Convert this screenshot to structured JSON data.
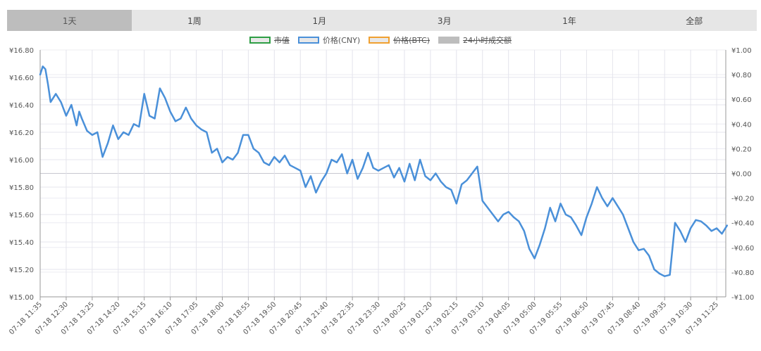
{
  "tabs": [
    {
      "label": "1天",
      "active": true
    },
    {
      "label": "1周",
      "active": false
    },
    {
      "label": "1月",
      "active": false
    },
    {
      "label": "3月",
      "active": false
    },
    {
      "label": "1年",
      "active": false
    },
    {
      "label": "全部",
      "active": false
    }
  ],
  "legend": [
    {
      "label": "市值",
      "color": "#2e9e44",
      "fill": "#e8e8e8",
      "hidden": true
    },
    {
      "label": "价格(CNY)",
      "color": "#4a90d9",
      "fill": "#e8e8e8",
      "hidden": false
    },
    {
      "label": "价格(BTC)",
      "color": "#f0a030",
      "fill": "#e8e8e8",
      "hidden": true
    },
    {
      "label": "24小时成交额",
      "color": "#bdbdbd",
      "fill": "#bdbdbd",
      "hidden": true
    }
  ],
  "chart_data": {
    "type": "line",
    "x_ticks": [
      "07-18 11:35",
      "07-18 12:30",
      "07-18 13:25",
      "07-18 14:20",
      "07-18 15:15",
      "07-18 16:10",
      "07-18 17:05",
      "07-18 18:00",
      "07-18 18:55",
      "07-18 19:50",
      "07-18 20:45",
      "07-18 21:40",
      "07-18 22:35",
      "07-18 23:30",
      "07-19 00:25",
      "07-19 01:20",
      "07-19 02:15",
      "07-19 03:10",
      "07-19 04:05",
      "07-19 05:00",
      "07-19 05:55",
      "07-19 06:50",
      "07-19 07:45",
      "07-19 08:40",
      "07-19 09:35",
      "07-19 10:30",
      "07-19 11:25"
    ],
    "y_left_ticks": [
      "¥15.00",
      "¥15.20",
      "¥15.40",
      "¥15.60",
      "¥15.80",
      "¥16.00",
      "¥16.20",
      "¥16.40",
      "¥16.60",
      "¥16.80"
    ],
    "y_left_range": [
      15.0,
      16.8
    ],
    "y_right_ticks": [
      "-¥1.00",
      "-¥0.80",
      "-¥0.60",
      "-¥0.40",
      "-¥0.20",
      "¥0.00",
      "¥0.20",
      "¥0.40",
      "¥0.60",
      "¥0.80",
      "¥1.00"
    ],
    "y_right_range": [
      -1.0,
      1.0
    ],
    "grid": true,
    "series": [
      {
        "name": "价格(CNY)",
        "color": "#4a90d9",
        "x": [
          0.0,
          0.1,
          0.2,
          0.3,
          0.4,
          0.6,
          0.8,
          1.0,
          1.2,
          1.4,
          1.5,
          1.6,
          1.8,
          2.0,
          2.2,
          2.4,
          2.6,
          2.8,
          3.0,
          3.2,
          3.4,
          3.6,
          3.8,
          4.0,
          4.2,
          4.4,
          4.6,
          4.8,
          5.0,
          5.2,
          5.4,
          5.6,
          5.8,
          6.0,
          6.2,
          6.4,
          6.6,
          6.8,
          7.0,
          7.2,
          7.4,
          7.6,
          7.8,
          8.0,
          8.2,
          8.4,
          8.6,
          8.8,
          9.0,
          9.2,
          9.4,
          9.6,
          9.8,
          10.0,
          10.2,
          10.4,
          10.6,
          10.8,
          11.0,
          11.2,
          11.4,
          11.6,
          11.8,
          12.0,
          12.2,
          12.4,
          12.6,
          12.8,
          13.0,
          13.2,
          13.4,
          13.6,
          13.8,
          14.0,
          14.2,
          14.4,
          14.6,
          14.8,
          15.0,
          15.2,
          15.4,
          15.6,
          15.8,
          16.0,
          16.2,
          16.4,
          16.6,
          16.8,
          17.0,
          17.2,
          17.4,
          17.6,
          17.8,
          18.0,
          18.2,
          18.4,
          18.6,
          18.8,
          19.0,
          19.2,
          19.4,
          19.6,
          19.8,
          20.0,
          20.2,
          20.4,
          20.6,
          20.8,
          21.0,
          21.2,
          21.4,
          21.6,
          21.8,
          22.0,
          22.2,
          22.4,
          22.6,
          22.8,
          23.0,
          23.2,
          23.4,
          23.6,
          23.8,
          24.0,
          24.2,
          24.4,
          24.6,
          24.8,
          25.0,
          25.2,
          25.4,
          25.6,
          25.8,
          26.0,
          26.2,
          26.4
        ],
        "y": [
          16.62,
          16.68,
          16.66,
          16.55,
          16.42,
          16.48,
          16.42,
          16.32,
          16.4,
          16.25,
          16.35,
          16.3,
          16.21,
          16.18,
          16.2,
          16.02,
          16.12,
          16.25,
          16.15,
          16.2,
          16.18,
          16.26,
          16.24,
          16.48,
          16.32,
          16.3,
          16.52,
          16.45,
          16.35,
          16.28,
          16.3,
          16.38,
          16.3,
          16.25,
          16.22,
          16.2,
          16.05,
          16.08,
          15.98,
          16.02,
          16.0,
          16.05,
          16.18,
          16.18,
          16.08,
          16.05,
          15.98,
          15.96,
          16.02,
          15.98,
          16.03,
          15.96,
          15.94,
          15.92,
          15.8,
          15.88,
          15.76,
          15.84,
          15.9,
          16.0,
          15.98,
          16.04,
          15.9,
          16.0,
          15.86,
          15.94,
          16.05,
          15.94,
          15.92,
          15.94,
          15.96,
          15.87,
          15.94,
          15.84,
          15.97,
          15.85,
          16.0,
          15.88,
          15.85,
          15.9,
          15.84,
          15.8,
          15.78,
          15.68,
          15.82,
          15.85,
          15.9,
          15.95,
          15.7,
          15.65,
          15.6,
          15.55,
          15.6,
          15.62,
          15.58,
          15.55,
          15.48,
          15.35,
          15.28,
          15.38,
          15.5,
          15.65,
          15.55,
          15.68,
          15.6,
          15.58,
          15.52,
          15.45,
          15.58,
          15.68,
          15.8,
          15.72,
          15.66,
          15.72,
          15.66,
          15.6,
          15.5,
          15.4,
          15.34,
          15.35,
          15.3,
          15.2,
          15.17,
          15.15,
          15.16,
          15.54,
          15.48,
          15.4,
          15.5,
          15.56,
          15.55,
          15.52,
          15.48,
          15.5,
          15.46,
          15.52
        ]
      }
    ]
  }
}
